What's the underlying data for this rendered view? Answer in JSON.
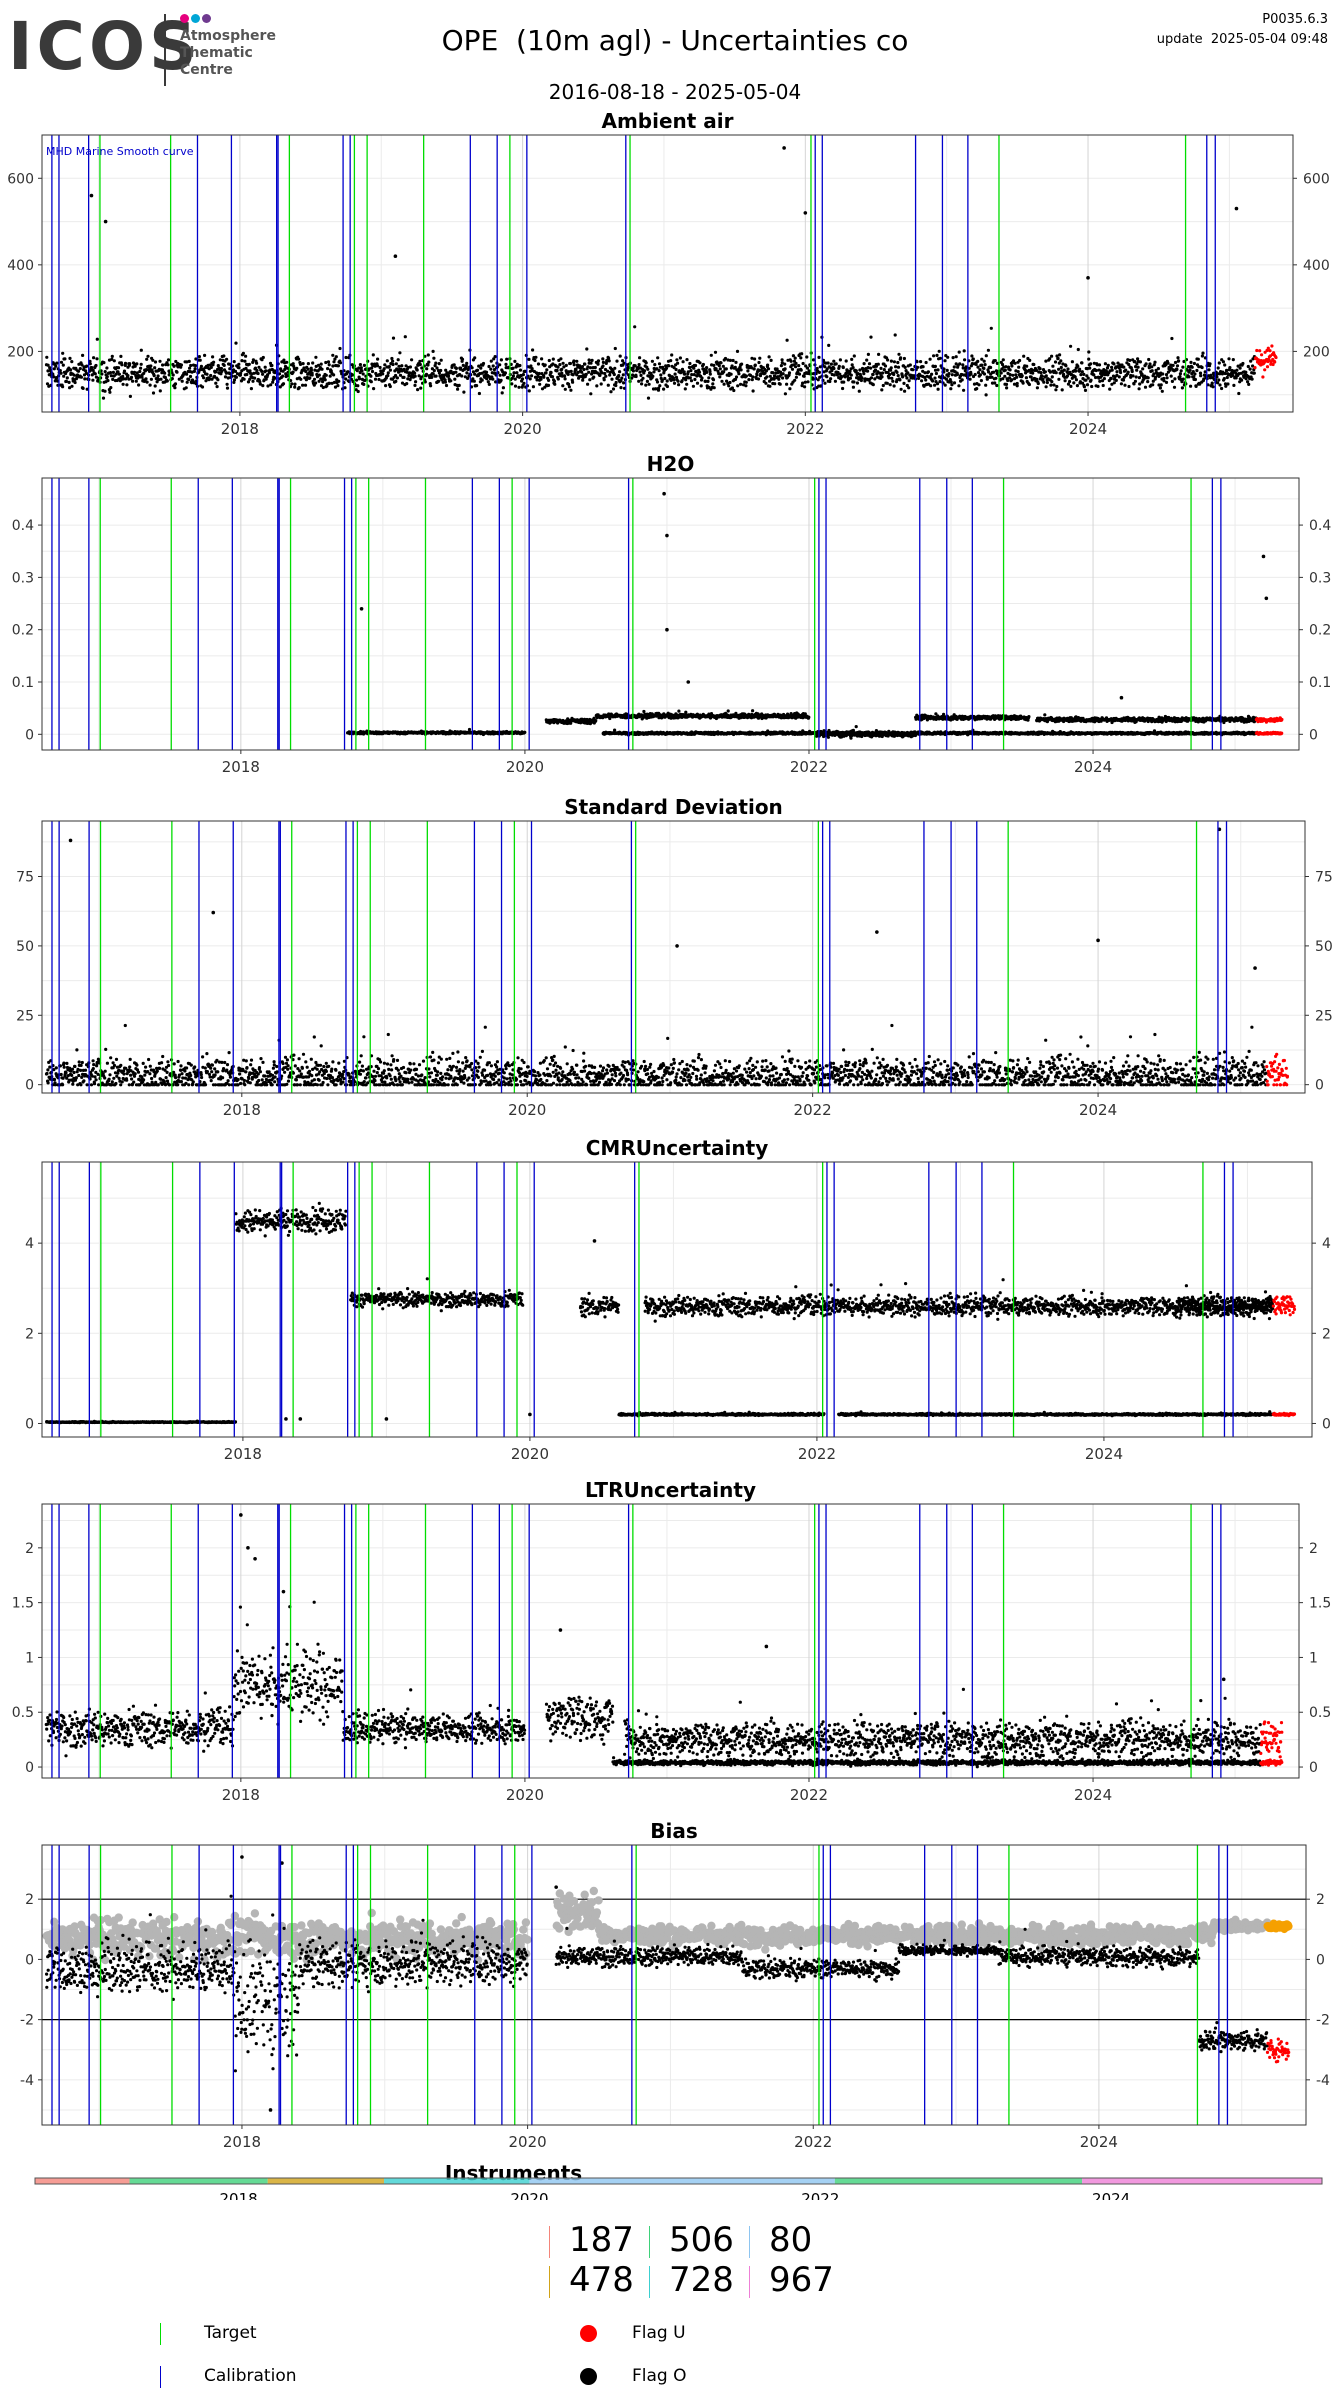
{
  "header": {
    "logo_text": "ICOS",
    "logo_sub_lines": [
      "Atmosphere",
      "Thematic",
      "Centre"
    ],
    "title": "OPE  (10m agl) - Uncertainties co",
    "date_range": "2016-08-18 - 2025-05-04",
    "version": "P0035.6.3",
    "update": "update  2025-05-04 09:48"
  },
  "colors": {
    "target": "#00dd00",
    "calibration": "#0000cc",
    "flag_u": "#ff0000",
    "flag_o": "#000000",
    "smooth": "#b5b5b5",
    "orange": "#f5a000",
    "logo_dots": [
      "#e6007e",
      "#00a6d6",
      "#6f3a8f"
    ]
  },
  "markers": {
    "calibration_dates": [
      2016.67,
      2016.72,
      2016.93,
      2017.7,
      2017.94,
      2018.26,
      2018.27,
      2018.73,
      2018.78,
      2019.63,
      2019.82,
      2020.03,
      2020.73,
      2022.07,
      2022.12,
      2022.78,
      2022.97,
      2023.15,
      2024.84,
      2024.9
    ],
    "target_dates": [
      2017.01,
      2017.51,
      2018.35,
      2018.81,
      2018.9,
      2019.3,
      2019.91,
      2020.76,
      2022.04,
      2023.37,
      2024.69
    ]
  },
  "chart_data": [
    {
      "type": "scatter",
      "title": "Ambient air",
      "annotation": "MHD Marine Smooth curve",
      "xlim": [
        2016.6,
        2025.45
      ],
      "ylim": [
        60,
        700
      ],
      "yticks": [
        200,
        400,
        600
      ],
      "xticks": [
        2018,
        2020,
        2022,
        2024
      ],
      "grid": true,
      "series": [
        {
          "flag": "O",
          "segments": [
            [
              2016.63,
              2025.18,
              150,
              35
            ]
          ]
        },
        {
          "flag": "U",
          "segments": [
            [
              2025.18,
              2025.33,
              180,
              30
            ]
          ]
        }
      ],
      "outliers": [
        [
          2016.95,
          560
        ],
        [
          2017.05,
          500
        ],
        [
          2019.1,
          420
        ],
        [
          2021.85,
          670
        ],
        [
          2022.0,
          520
        ],
        [
          2024.0,
          370
        ],
        [
          2025.05,
          530
        ]
      ]
    },
    {
      "type": "scatter",
      "title": "H2O",
      "xlim": [
        2016.6,
        2025.45
      ],
      "ylim": [
        -0.03,
        0.49
      ],
      "yticks": [
        0.0,
        0.1,
        0.2,
        0.3,
        0.4
      ],
      "xticks": [
        2018,
        2020,
        2022,
        2024
      ],
      "grid": true,
      "series": [
        {
          "flag": "O",
          "segments": [
            [
              2018.75,
              2020.0,
              0.003,
              0.002
            ],
            [
              2020.15,
              2020.5,
              0.025,
              0.004
            ],
            [
              2020.5,
              2022.0,
              0.035,
              0.004
            ],
            [
              2022.05,
              2022.75,
              0.0,
              0.005
            ],
            [
              2022.75,
              2023.55,
              0.032,
              0.004
            ],
            [
              2023.6,
              2025.15,
              0.028,
              0.004
            ],
            [
              2020.55,
              2025.15,
              0.002,
              0.002
            ]
          ]
        },
        {
          "flag": "U",
          "segments": [
            [
              2025.15,
              2025.33,
              0.028,
              0.003
            ],
            [
              2025.15,
              2025.33,
              0.002,
              0.002
            ]
          ]
        }
      ],
      "outliers": [
        [
          2020.98,
          0.46
        ],
        [
          2021.0,
          0.38
        ],
        [
          2021.0,
          0.2
        ],
        [
          2021.15,
          0.1
        ],
        [
          2018.85,
          0.24
        ],
        [
          2025.2,
          0.34
        ],
        [
          2025.22,
          0.26
        ],
        [
          2024.2,
          0.07
        ]
      ]
    },
    {
      "type": "scatter",
      "title": "Standard Deviation",
      "xlim": [
        2016.6,
        2025.45
      ],
      "ylim": [
        -3,
        95
      ],
      "yticks": [
        0,
        25,
        50,
        75
      ],
      "xticks": [
        2018,
        2020,
        2022,
        2024
      ],
      "grid": true,
      "series": [
        {
          "flag": "O",
          "segments": [
            [
              2016.63,
              2025.18,
              3,
              6
            ]
          ]
        },
        {
          "flag": "U",
          "segments": [
            [
              2025.18,
              2025.33,
              4,
              6
            ]
          ]
        }
      ],
      "outliers": [
        [
          2016.8,
          88
        ],
        [
          2017.8,
          62
        ],
        [
          2021.05,
          50
        ],
        [
          2022.45,
          55
        ],
        [
          2024.0,
          52
        ],
        [
          2024.85,
          92
        ],
        [
          2025.1,
          42
        ]
      ]
    },
    {
      "type": "scatter",
      "title": "CMRUncertainty",
      "xlim": [
        2016.6,
        2025.45
      ],
      "ylim": [
        -0.3,
        5.8
      ],
      "yticks": [
        0,
        2,
        4
      ],
      "xticks": [
        2018,
        2020,
        2022,
        2024
      ],
      "grid": true,
      "series": [
        {
          "flag": "O",
          "segments": [
            [
              2016.63,
              2017.95,
              0.03,
              0.01
            ],
            [
              2017.95,
              2018.72,
              4.5,
              0.25
            ],
            [
              2018.75,
              2019.95,
              2.75,
              0.15
            ],
            [
              2020.35,
              2020.62,
              2.6,
              0.2
            ],
            [
              2020.62,
              2022.05,
              0.2,
              0.02
            ],
            [
              2022.15,
              2025.18,
              0.2,
              0.02
            ],
            [
              2020.8,
              2025.18,
              2.6,
              0.2
            ],
            [
              2024.5,
              2025.18,
              2.6,
              0.2
            ]
          ]
        },
        {
          "flag": "U",
          "segments": [
            [
              2025.18,
              2025.33,
              2.6,
              0.2
            ],
            [
              2025.18,
              2025.33,
              0.2,
              0.02
            ]
          ]
        }
      ],
      "outliers": [
        [
          2020.0,
          0.2
        ],
        [
          2020.45,
          4.05
        ],
        [
          2018.3,
          0.1
        ],
        [
          2018.4,
          0.1
        ],
        [
          2019.0,
          0.1
        ]
      ]
    },
    {
      "type": "scatter",
      "title": "LTRUncertainty",
      "xlim": [
        2016.6,
        2025.45
      ],
      "ylim": [
        -0.1,
        2.4
      ],
      "yticks": [
        0.0,
        0.5,
        1.0,
        1.5,
        2.0
      ],
      "xticks": [
        2018,
        2020,
        2022,
        2024
      ],
      "grid": true,
      "series": [
        {
          "flag": "O",
          "segments": [
            [
              2016.63,
              2017.95,
              0.35,
              0.15
            ],
            [
              2017.95,
              2018.72,
              0.75,
              0.3
            ],
            [
              2018.72,
              2020.0,
              0.35,
              0.12
            ],
            [
              2020.15,
              2020.62,
              0.45,
              0.2
            ],
            [
              2020.62,
              2025.18,
              0.04,
              0.02
            ],
            [
              2020.7,
              2025.18,
              0.25,
              0.15
            ]
          ]
        },
        {
          "flag": "U",
          "segments": [
            [
              2025.18,
              2025.33,
              0.25,
              0.15
            ],
            [
              2025.18,
              2025.33,
              0.04,
              0.02
            ]
          ]
        }
      ],
      "outliers": [
        [
          2018.0,
          2.3
        ],
        [
          2018.05,
          2.0
        ],
        [
          2018.1,
          1.9
        ],
        [
          2018.3,
          1.6
        ],
        [
          2020.25,
          1.25
        ],
        [
          2021.7,
          1.1
        ],
        [
          2024.92,
          0.8
        ]
      ]
    },
    {
      "type": "scatter",
      "title": "Bias",
      "xlim": [
        2016.6,
        2025.45
      ],
      "ylim": [
        -5.5,
        3.8
      ],
      "yticks": [
        -4,
        -2,
        0,
        2
      ],
      "hlines": [
        -2,
        2
      ],
      "xticks": [
        2018,
        2020,
        2022,
        2024
      ],
      "grid": true,
      "series": [
        {
          "flag": "smooth",
          "segments": [
            [
              2016.63,
              2020.0,
              0.7,
              0.6
            ],
            [
              2020.2,
              2020.5,
              1.6,
              0.6
            ],
            [
              2020.5,
              2024.8,
              0.8,
              0.3
            ],
            [
              2024.8,
              2025.18,
              1.1,
              0.15
            ]
          ]
        },
        {
          "flag": "O",
          "segments": [
            [
              2016.63,
              2017.95,
              -0.3,
              0.8
            ],
            [
              2017.95,
              2018.4,
              -1.5,
              1.8
            ],
            [
              2018.4,
              2020.0,
              -0.1,
              0.7
            ],
            [
              2020.2,
              2021.5,
              0.1,
              0.3
            ],
            [
              2021.5,
              2022.6,
              -0.3,
              0.3
            ],
            [
              2022.6,
              2023.3,
              0.3,
              0.15
            ],
            [
              2023.3,
              2024.7,
              0.1,
              0.3
            ],
            [
              2024.7,
              2025.18,
              -2.7,
              0.3
            ]
          ]
        },
        {
          "flag": "U",
          "segments": [
            [
              2025.18,
              2025.33,
              -3.0,
              0.3
            ]
          ]
        },
        {
          "flag": "orange",
          "segments": [
            [
              2025.18,
              2025.33,
              1.1,
              0.1
            ]
          ]
        }
      ],
      "outliers": [
        [
          2018.0,
          3.4
        ],
        [
          2018.28,
          3.2
        ],
        [
          2018.2,
          -5.0
        ],
        [
          2020.2,
          2.4
        ]
      ]
    },
    {
      "type": "heatmap",
      "title": "Instruments",
      "xlim": [
        2016.6,
        2025.45
      ],
      "xticks": [
        2018,
        2020,
        2022,
        2024
      ],
      "grid": false,
      "periods": [
        [
          2016.6,
          2017.25,
          "187"
        ],
        [
          2017.25,
          2018.2,
          "506"
        ],
        [
          2018.2,
          2019.0,
          "478"
        ],
        [
          2019.0,
          2020.0,
          "728"
        ],
        [
          2020.0,
          2022.1,
          "80"
        ],
        [
          2022.1,
          2023.8,
          "506"
        ],
        [
          2023.8,
          2025.45,
          "967"
        ]
      ]
    }
  ],
  "instruments": {
    "items": [
      {
        "id": "187",
        "color": "#f4857a"
      },
      {
        "id": "506",
        "color": "#3ed17a"
      },
      {
        "id": "80",
        "color": "#8ec5f0"
      },
      {
        "id": "478",
        "color": "#d1a319"
      },
      {
        "id": "728",
        "color": "#3ccfd0"
      },
      {
        "id": "967",
        "color": "#ee7fd6"
      }
    ]
  },
  "legend": {
    "target": "Target",
    "calibration": "Calibration",
    "flag_u": "Flag U",
    "flag_o": "Flag O"
  }
}
